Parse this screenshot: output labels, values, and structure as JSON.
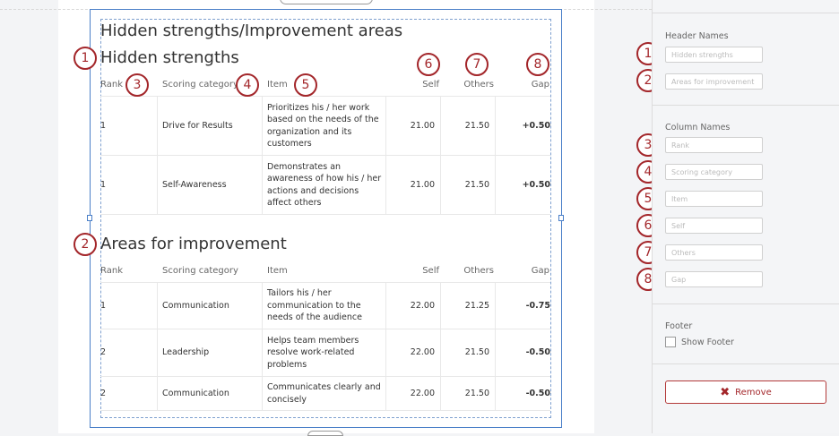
{
  "report": {
    "title": "Hidden strengths/Improvement areas",
    "columns": [
      "Rank",
      "Scoring category",
      "Item",
      "Self",
      "Others",
      "Gap"
    ],
    "sections": [
      {
        "title": "Hidden strengths",
        "rows": [
          {
            "rank": "1",
            "category": "Drive for Results",
            "item": "Prioritizes his / her work based on the needs of the organization and its customers",
            "self": "21.00",
            "others": "21.50",
            "gap": "+0.50"
          },
          {
            "rank": "1",
            "category": "Self-Awareness",
            "item": "Demonstrates an awareness of how his / her actions and decisions affect others",
            "self": "21.00",
            "others": "21.50",
            "gap": "+0.50"
          }
        ]
      },
      {
        "title": "Areas for improvement",
        "rows": [
          {
            "rank": "1",
            "category": "Communication",
            "item": "Tailors his / her communication to the needs of the audience",
            "self": "22.00",
            "others": "21.25",
            "gap": "-0.75"
          },
          {
            "rank": "2",
            "category": "Leadership",
            "item": "Helps team members resolve work-related problems",
            "self": "22.00",
            "others": "21.50",
            "gap": "-0.50"
          },
          {
            "rank": "2",
            "category": "Communication",
            "item": "Communicates clearly and concisely",
            "self": "22.00",
            "others": "21.50",
            "gap": "-0.50"
          }
        ]
      }
    ]
  },
  "annotations": [
    "1",
    "2",
    "3",
    "4",
    "5",
    "6",
    "7",
    "8"
  ],
  "panel": {
    "header_names_label": "Header Names",
    "header_placeholders": [
      "Hidden strengths",
      "Areas for improvement"
    ],
    "column_names_label": "Column Names",
    "column_placeholders": [
      "Rank",
      "Scoring category",
      "Item",
      "Self",
      "Others",
      "Gap"
    ],
    "footer_label": "Footer",
    "show_footer_label": "Show Footer",
    "show_footer_checked": false,
    "remove_label": "Remove"
  },
  "colors": {
    "accent": "#a3262a",
    "selection": "#4a7fc8"
  }
}
